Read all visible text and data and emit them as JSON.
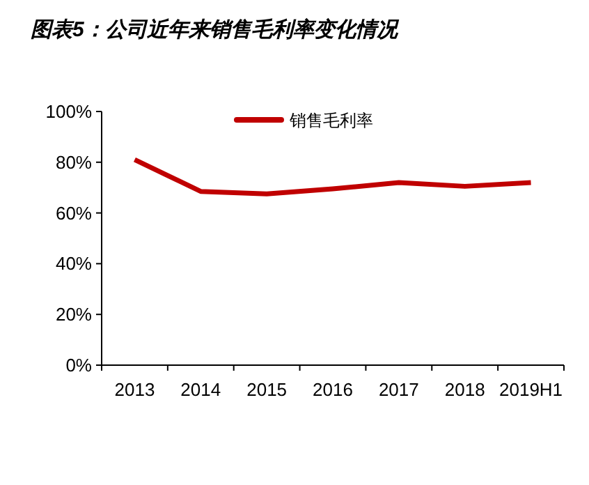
{
  "chart_data": {
    "type": "line",
    "title": "图表5：公司近年来销售毛利率变化情况",
    "categories": [
      "2013",
      "2014",
      "2015",
      "2016",
      "2017",
      "2018",
      "2019H1"
    ],
    "series": [
      {
        "name": "销售毛利率",
        "color": "#c00000",
        "values": [
          81,
          68.5,
          67.5,
          69.5,
          72,
          70.5,
          72
        ]
      }
    ],
    "ylim": [
      0,
      100
    ],
    "yticks": [
      {
        "value": 0,
        "label": "0%"
      },
      {
        "value": 20,
        "label": "20%"
      },
      {
        "value": 40,
        "label": "40%"
      },
      {
        "value": 60,
        "label": "60%"
      },
      {
        "value": 80,
        "label": "80%"
      },
      {
        "value": 100,
        "label": "100%"
      }
    ],
    "legend": "top",
    "marker": "none",
    "line_style": "solid",
    "grid": false
  }
}
